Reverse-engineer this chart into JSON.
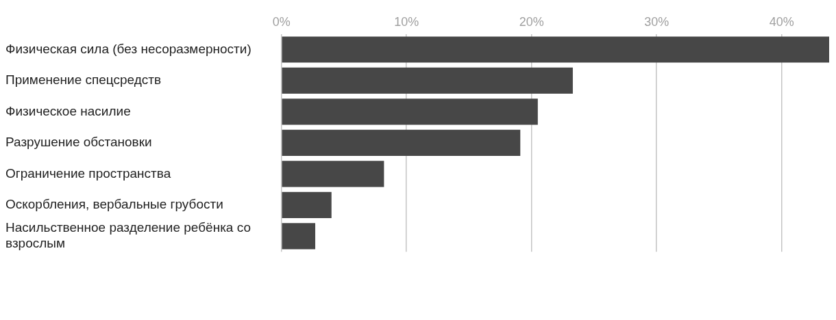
{
  "chart_data": {
    "type": "bar",
    "orientation": "horizontal",
    "categories": [
      "Физическая сила (без несоразмерности)",
      "Применение спецсредств",
      "Физическое насилие",
      "Разрушение обстановки",
      "Ограничение пространства",
      "Оскорбления, вербальные грубости",
      "Насильственное разделение ребёнка со взрослым"
    ],
    "values": [
      43.8,
      23.3,
      20.5,
      19.1,
      8.2,
      4.0,
      2.7
    ],
    "color": "#474747",
    "xlim": [
      0,
      43.8
    ],
    "xticks": [
      {
        "value": 0,
        "label": "0%"
      },
      {
        "value": 10,
        "label": "10%"
      },
      {
        "value": 20,
        "label": "20%"
      },
      {
        "value": 30,
        "label": "30%"
      },
      {
        "value": 40,
        "label": "40%"
      }
    ],
    "grid": "x"
  }
}
